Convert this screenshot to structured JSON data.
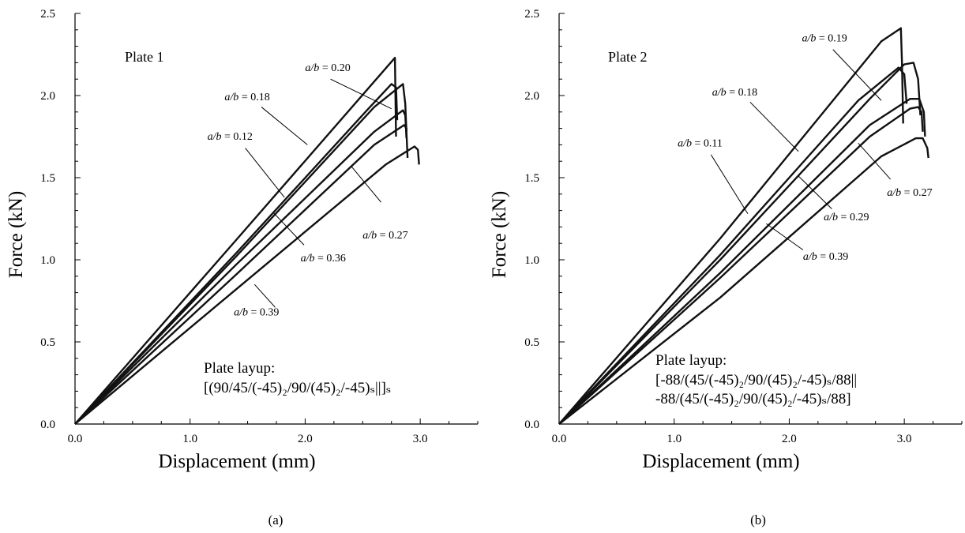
{
  "chart_data": [
    {
      "type": "line",
      "panel_caption": "(a)",
      "plate_label": "Plate 1",
      "xlabel": "Displacement (mm)",
      "ylabel": "Force (kN)",
      "xlim": [
        0,
        3.5
      ],
      "ylim": [
        0,
        2.5
      ],
      "x_ticks": [
        "0.0",
        "1.0",
        "2.0",
        "3.0"
      ],
      "x_tick_values": [
        0,
        1,
        2,
        3
      ],
      "y_ticks": [
        "0.0",
        "0.5",
        "1.0",
        "1.5",
        "2.0",
        "2.5"
      ],
      "y_tick_values": [
        0,
        0.5,
        1,
        1.5,
        2,
        2.5
      ],
      "layup_title": "Plate layup:",
      "layup_line1": "[(90/45/(-45)₂/90/(45)₂/-45)ₛ||]ₛ",
      "annotation_ratio_prefix": "a/b",
      "series": [
        {
          "name": "a/b = 0.20",
          "label_value": "0.20",
          "points": [
            [
              0,
              0
            ],
            [
              1.4,
              1.12
            ],
            [
              2.78,
              2.23
            ],
            [
              2.79,
              1.75
            ]
          ]
        },
        {
          "name": "a/b = 0.18",
          "label_value": "0.18",
          "points": [
            [
              0,
              0
            ],
            [
              1.4,
              1.04
            ],
            [
              2.55,
              1.92
            ],
            [
              2.75,
              2.07
            ],
            [
              2.79,
              2.05
            ],
            [
              2.8,
              1.85
            ]
          ]
        },
        {
          "name": "a/b = 0.12",
          "label_value": "0.12",
          "points": [
            [
              0,
              0
            ],
            [
              1.4,
              1.02
            ],
            [
              2.6,
              1.93
            ],
            [
              2.85,
              2.07
            ],
            [
              2.87,
              1.95
            ],
            [
              2.89,
              1.62
            ]
          ]
        },
        {
          "name": "a/b = 0.27",
          "label_value": "0.27",
          "points": [
            [
              0,
              0
            ],
            [
              1.4,
              0.97
            ],
            [
              2.6,
              1.78
            ],
            [
              2.85,
              1.91
            ],
            [
              2.87,
              1.88
            ],
            [
              2.88,
              1.74
            ]
          ]
        },
        {
          "name": "a/b = 0.36",
          "label_value": "0.36",
          "points": [
            [
              0,
              0
            ],
            [
              1.4,
              0.91
            ],
            [
              2.6,
              1.7
            ],
            [
              2.86,
              1.82
            ],
            [
              2.88,
              1.8
            ],
            [
              2.88,
              1.78
            ]
          ]
        },
        {
          "name": "a/b = 0.39",
          "label_value": "0.39",
          "points": [
            [
              0,
              0
            ],
            [
              1.4,
              0.82
            ],
            [
              2.7,
              1.58
            ],
            [
              2.95,
              1.69
            ],
            [
              2.98,
              1.67
            ],
            [
              2.99,
              1.58
            ]
          ]
        }
      ],
      "annotations": [
        {
          "series": "a/b = 0.20",
          "text_value": "0.20",
          "text_xy": [
            2.0,
            2.15
          ],
          "leader": [
            [
              2.22,
              2.1
            ],
            [
              2.75,
              1.92
            ]
          ]
        },
        {
          "series": "a/b = 0.18",
          "text_value": "0.18",
          "text_xy": [
            1.3,
            1.97
          ],
          "leader": [
            [
              1.62,
              1.93
            ],
            [
              2.02,
              1.7
            ]
          ]
        },
        {
          "name": "a/b = 0.12",
          "text_value": "0.12",
          "text_xy": [
            1.15,
            1.73
          ],
          "leader": [
            [
              1.48,
              1.68
            ],
            [
              1.82,
              1.38
            ]
          ]
        },
        {
          "series": "a/b = 0.27",
          "text_value": "0.27",
          "text_xy": [
            2.5,
            1.13
          ],
          "leader": [
            [
              2.66,
              1.35
            ],
            [
              2.4,
              1.57
            ]
          ]
        },
        {
          "series": "a/b = 0.36",
          "text_value": "0.36",
          "text_xy": [
            1.96,
            0.99
          ],
          "leader": [
            [
              1.99,
              1.09
            ],
            [
              1.72,
              1.29
            ]
          ]
        },
        {
          "series": "a/b = 0.39",
          "text_value": "0.39",
          "text_xy": [
            1.38,
            0.66
          ],
          "leader": [
            [
              1.74,
              0.71
            ],
            [
              1.56,
              0.85
            ]
          ]
        }
      ]
    },
    {
      "type": "line",
      "panel_caption": "(b)",
      "plate_label": "Plate 2",
      "xlabel": "Displacement (mm)",
      "ylabel": "Force (kN)",
      "xlim": [
        0,
        3.5
      ],
      "ylim": [
        0,
        2.5
      ],
      "x_ticks": [
        "0.0",
        "1.0",
        "2.0",
        "3.0"
      ],
      "x_tick_values": [
        0,
        1,
        2,
        3
      ],
      "y_ticks": [
        "0.0",
        "0.5",
        "1.0",
        "1.5",
        "2.0",
        "2.5"
      ],
      "y_tick_values": [
        0,
        0.5,
        1,
        1.5,
        2,
        2.5
      ],
      "layup_title": "Plate layup:",
      "layup_line1": "[-88/(45/(-45)₂/90/(45)₂/-45)ₛ/88||",
      "layup_line2": "-88/(45/(-45)₂/90/(45)₂/-45)ₛ/88]",
      "annotation_ratio_prefix": "a/b",
      "series": [
        {
          "name": "a/b = 0.11",
          "label_value": "0.11",
          "points": [
            [
              0,
              0
            ],
            [
              1.4,
              1.13
            ],
            [
              2.8,
              2.33
            ],
            [
              2.97,
              2.41
            ],
            [
              2.98,
              2.2
            ],
            [
              2.99,
              1.83
            ]
          ]
        },
        {
          "name": "a/b = 0.19",
          "label_value": "0.19",
          "points": [
            [
              0,
              0
            ],
            [
              1.4,
              1.03
            ],
            [
              2.6,
              1.97
            ],
            [
              2.95,
              2.17
            ],
            [
              3.0,
              2.13
            ],
            [
              3.02,
              1.95
            ]
          ]
        },
        {
          "name": "a/b = 0.18",
          "label_value": "0.18",
          "points": [
            [
              0,
              0
            ],
            [
              1.4,
              1.0
            ],
            [
              2.7,
              1.98
            ],
            [
              3.0,
              2.19
            ],
            [
              3.08,
              2.2
            ],
            [
              3.12,
              2.1
            ],
            [
              3.14,
              1.88
            ]
          ]
        },
        {
          "name": "a/b = 0.27",
          "label_value": "0.27",
          "points": [
            [
              0,
              0
            ],
            [
              1.4,
              0.92
            ],
            [
              2.7,
              1.82
            ],
            [
              3.05,
              1.98
            ],
            [
              3.13,
              1.98
            ],
            [
              3.17,
              1.9
            ],
            [
              3.18,
              1.75
            ]
          ]
        },
        {
          "name": "a/b = 0.29",
          "label_value": "0.29",
          "points": [
            [
              0,
              0
            ],
            [
              1.4,
              0.89
            ],
            [
              2.7,
              1.75
            ],
            [
              3.05,
              1.92
            ],
            [
              3.12,
              1.93
            ],
            [
              3.15,
              1.9
            ],
            [
              3.16,
              1.78
            ]
          ]
        },
        {
          "name": "a/b = 0.39",
          "label_value": "0.39",
          "points": [
            [
              0,
              0
            ],
            [
              1.4,
              0.77
            ],
            [
              2.8,
              1.63
            ],
            [
              3.1,
              1.74
            ],
            [
              3.16,
              1.74
            ],
            [
              3.2,
              1.68
            ],
            [
              3.21,
              1.62
            ]
          ]
        }
      ],
      "annotations": [
        {
          "series": "a/b = 0.19",
          "text_value": "0.19",
          "text_xy": [
            2.11,
            2.33
          ],
          "leader": [
            [
              2.38,
              2.28
            ],
            [
              2.8,
              1.97
            ]
          ]
        },
        {
          "series": "a/b = 0.18",
          "text_value": "0.18",
          "text_xy": [
            1.33,
            2.0
          ],
          "leader": [
            [
              1.66,
              1.96
            ],
            [
              2.08,
              1.66
            ]
          ]
        },
        {
          "series": "a/b = 0.11",
          "text_value": "0.11",
          "text_xy": [
            1.03,
            1.69
          ],
          "leader": [
            [
              1.32,
              1.64
            ],
            [
              1.64,
              1.28
            ]
          ]
        },
        {
          "series": "a/b = 0.27",
          "text_value": "0.27",
          "text_xy": [
            2.85,
            1.39
          ],
          "leader": [
            [
              2.88,
              1.49
            ],
            [
              2.6,
              1.71
            ]
          ]
        },
        {
          "series": "a/b = 0.29",
          "text_value": "0.29",
          "text_xy": [
            2.3,
            1.24
          ],
          "leader": [
            [
              2.37,
              1.31
            ],
            [
              2.08,
              1.51
            ]
          ]
        },
        {
          "series": "a/b = 0.39",
          "text_value": "0.39",
          "text_xy": [
            2.12,
            1.0
          ],
          "leader": [
            [
              2.12,
              1.06
            ],
            [
              1.8,
              1.22
            ]
          ]
        }
      ]
    }
  ]
}
